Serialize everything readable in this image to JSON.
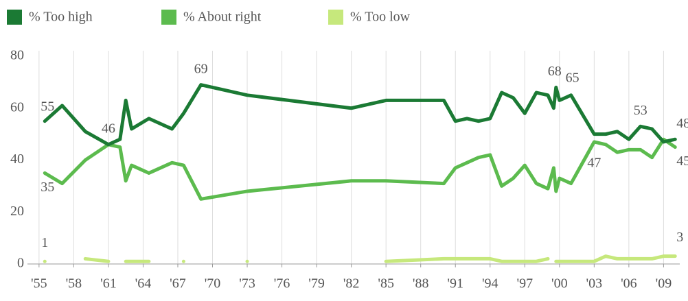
{
  "chart_data": {
    "type": "line",
    "x": [
      1955.5,
      1957,
      1959,
      1961,
      1962,
      1962.5,
      1963,
      1964.5,
      1966.5,
      1967.5,
      1969,
      1973,
      1982,
      1985,
      1990,
      1991,
      1992,
      1993,
      1994,
      1995,
      1996,
      1997,
      1998,
      1999,
      1999.5,
      1999.7,
      2000,
      2001,
      2003,
      2004,
      2005,
      2006,
      2007,
      2008,
      2009,
      2010
    ],
    "series": [
      {
        "name": "% Too high",
        "color": "#1b7a34",
        "values": [
          55,
          61,
          51,
          46,
          48,
          63,
          52,
          56,
          52,
          58,
          69,
          65,
          60,
          63,
          63,
          55,
          56,
          55,
          56,
          66,
          64,
          58,
          66,
          65,
          60,
          68,
          63,
          65,
          50,
          50,
          51,
          48,
          53,
          52,
          47,
          48
        ],
        "value_labels": [
          "55",
          null,
          null,
          null,
          null,
          null,
          null,
          null,
          null,
          null,
          "69",
          null,
          null,
          null,
          null,
          null,
          null,
          null,
          null,
          null,
          null,
          null,
          null,
          null,
          null,
          "68",
          null,
          "65",
          null,
          null,
          null,
          null,
          "53",
          null,
          null,
          "48"
        ]
      },
      {
        "name": "% About right",
        "color": "#5cbb4e",
        "values": [
          35,
          31,
          40,
          46,
          45,
          32,
          38,
          35,
          39,
          38,
          25,
          28,
          32,
          32,
          31,
          37,
          39,
          41,
          42,
          30,
          33,
          38,
          31,
          29,
          37,
          28,
          33,
          31,
          47,
          46,
          43,
          44,
          44,
          41,
          48,
          45
        ],
        "value_labels": [
          "35",
          null,
          null,
          "46",
          null,
          null,
          null,
          null,
          null,
          null,
          null,
          null,
          null,
          null,
          null,
          null,
          null,
          null,
          null,
          null,
          null,
          null,
          null,
          null,
          null,
          null,
          null,
          null,
          "47",
          null,
          null,
          null,
          null,
          null,
          null,
          "45"
        ]
      },
      {
        "name": "% Too low",
        "color": "#c6e87c",
        "values": [
          1,
          null,
          2,
          1,
          null,
          1,
          1,
          1,
          null,
          1,
          null,
          1,
          null,
          1,
          2,
          2,
          2,
          2,
          2,
          1,
          1,
          1,
          1,
          2,
          null,
          1,
          1,
          1,
          1,
          3,
          2,
          2,
          2,
          2,
          3,
          3
        ],
        "value_labels": [
          "1",
          null,
          null,
          null,
          null,
          null,
          null,
          null,
          null,
          null,
          null,
          null,
          null,
          null,
          null,
          null,
          null,
          null,
          null,
          null,
          null,
          null,
          null,
          null,
          null,
          null,
          null,
          null,
          null,
          null,
          null,
          null,
          null,
          null,
          null,
          "3"
        ]
      }
    ],
    "xlim": [
      1954,
      2010.4
    ],
    "xticks": [
      {
        "value": 1955,
        "label": "'55"
      },
      {
        "value": 1958,
        "label": "'58"
      },
      {
        "value": 1961,
        "label": "'61"
      },
      {
        "value": 1964,
        "label": "'64"
      },
      {
        "value": 1967,
        "label": "'67"
      },
      {
        "value": 1970,
        "label": "'70"
      },
      {
        "value": 1973,
        "label": "'73"
      },
      {
        "value": 1976,
        "label": "'76"
      },
      {
        "value": 1979,
        "label": "'79"
      },
      {
        "value": 1982,
        "label": "'82"
      },
      {
        "value": 1985,
        "label": "'85"
      },
      {
        "value": 1988,
        "label": "'88"
      },
      {
        "value": 1991,
        "label": "'91"
      },
      {
        "value": 1994,
        "label": "'94"
      },
      {
        "value": 1997,
        "label": "'97"
      },
      {
        "value": 2000,
        "label": "'00"
      },
      {
        "value": 2003,
        "label": "'03"
      },
      {
        "value": 2006,
        "label": "'06"
      },
      {
        "value": 2009,
        "label": "'09"
      }
    ],
    "ylim": [
      0,
      80
    ],
    "yticks": [
      0,
      20,
      40,
      60,
      80
    ],
    "grid": true,
    "legend": "top-left"
  }
}
